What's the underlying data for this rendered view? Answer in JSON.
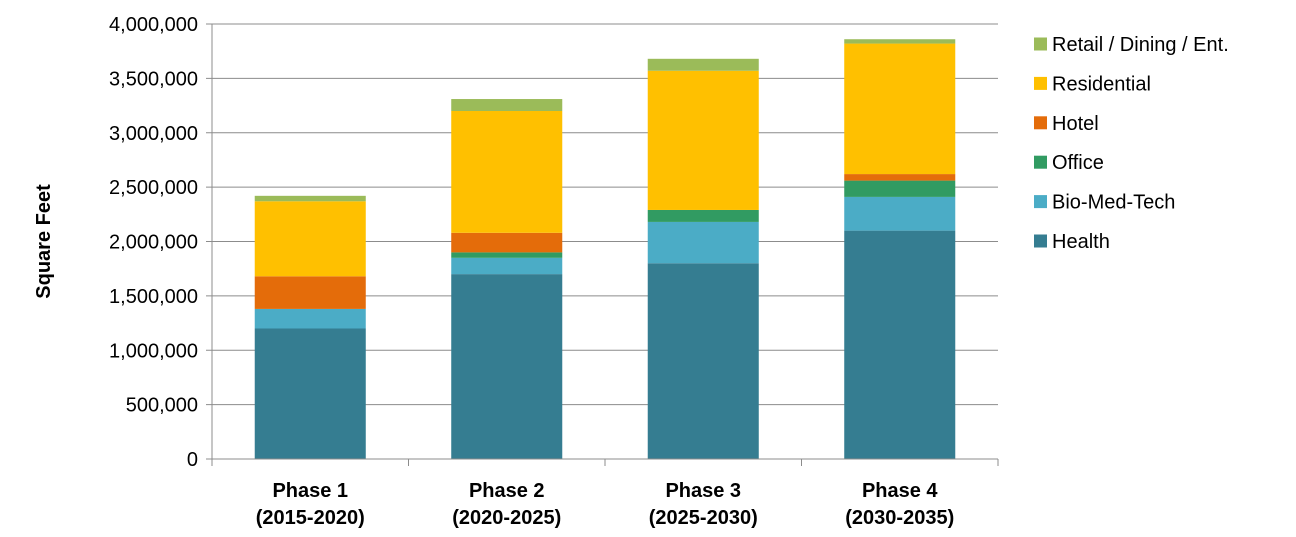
{
  "chart_data": {
    "type": "bar",
    "stacked": true,
    "title": "",
    "xlabel": "",
    "ylabel": "Square Feet",
    "ylim": [
      0,
      4000000
    ],
    "yticks": [
      0,
      500000,
      1000000,
      1500000,
      2000000,
      2500000,
      3000000,
      3500000,
      4000000
    ],
    "ytick_labels": [
      "0",
      "500,000",
      "1,000,000",
      "1,500,000",
      "2,000,000",
      "2,500,000",
      "3,000,000",
      "3,500,000",
      "4,000,000"
    ],
    "grid": true,
    "legend_position": "right",
    "categories": [
      [
        "Phase 1",
        "(2015-2020)"
      ],
      [
        "Phase 2",
        "(2020-2025)"
      ],
      [
        "Phase 3",
        "(2025-2030)"
      ],
      [
        "Phase 4",
        "(2030-2035)"
      ]
    ],
    "series": [
      {
        "name": "Health",
        "color": "#357d91",
        "values": [
          1200000,
          1700000,
          1800000,
          2100000
        ]
      },
      {
        "name": "Bio-Med-Tech",
        "color": "#4bacc6",
        "values": [
          180000,
          150000,
          380000,
          310000
        ]
      },
      {
        "name": "Office",
        "color": "#319b62",
        "values": [
          0,
          50000,
          110000,
          150000
        ]
      },
      {
        "name": "Hotel",
        "color": "#e46c0a",
        "values": [
          300000,
          180000,
          0,
          60000
        ]
      },
      {
        "name": "Residential",
        "color": "#ffc000",
        "values": [
          690000,
          1120000,
          1280000,
          1200000
        ]
      },
      {
        "name": "Retail / Dining / Ent.",
        "color": "#9bbb59",
        "values": [
          50000,
          110000,
          110000,
          40000
        ]
      }
    ]
  }
}
